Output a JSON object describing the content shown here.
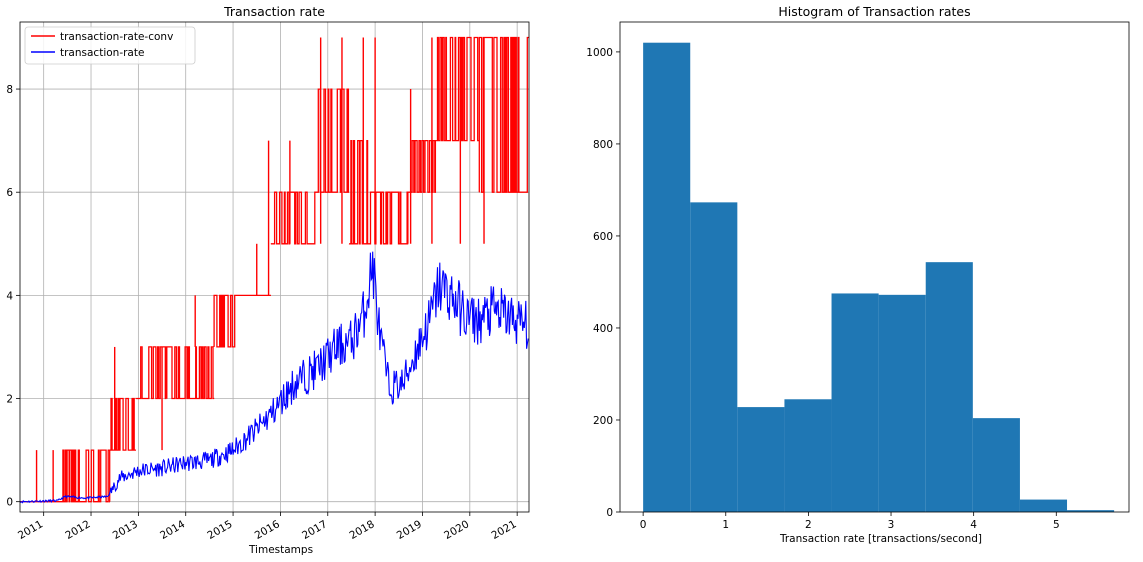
{
  "chart_data": [
    {
      "type": "line",
      "title": "Transaction rate",
      "xlabel": "Timestamps",
      "ylabel": "",
      "x_range": [
        2010.5,
        2021.25
      ],
      "ylim": [
        -0.2,
        9.3
      ],
      "grid": true,
      "legend_position": "top-left",
      "x_tick_labels": [
        "2011",
        "2012",
        "2013",
        "2014",
        "2015",
        "2016",
        "2017",
        "2018",
        "2019",
        "2020",
        "2021"
      ],
      "x_tick_values": [
        2011,
        2012,
        2013,
        2014,
        2015,
        2016,
        2017,
        2018,
        2019,
        2020,
        2021
      ],
      "y_ticks": [
        0,
        2,
        4,
        6,
        8
      ],
      "series": [
        {
          "name": "transaction-rate-conv",
          "color": "#ff0000",
          "style": "step-band",
          "bands": [
            {
              "x0": 2010.5,
              "x1": 2011.3,
              "lo": 0,
              "hi": 0
            },
            {
              "x0": 2011.3,
              "x1": 2012.4,
              "lo": 0,
              "hi": 1
            },
            {
              "x0": 2012.4,
              "x1": 2012.95,
              "lo": 1,
              "hi": 2
            },
            {
              "x0": 2012.95,
              "x1": 2013.6,
              "lo": 2,
              "hi": 3
            },
            {
              "x0": 2013.6,
              "x1": 2014.6,
              "lo": 2,
              "hi": 3
            },
            {
              "x0": 2014.6,
              "x1": 2015.05,
              "lo": 3,
              "hi": 4
            },
            {
              "x0": 2015.05,
              "x1": 2015.8,
              "lo": 4,
              "hi": 4
            },
            {
              "x0": 2015.8,
              "x1": 2016.75,
              "lo": 5,
              "hi": 6
            },
            {
              "x0": 2016.75,
              "x1": 2017.45,
              "lo": 6,
              "hi": 8
            },
            {
              "x0": 2017.45,
              "x1": 2017.85,
              "lo": 5,
              "hi": 7
            },
            {
              "x0": 2017.85,
              "x1": 2018.7,
              "lo": 5,
              "hi": 6
            },
            {
              "x0": 2018.7,
              "x1": 2019.3,
              "lo": 6,
              "hi": 7
            },
            {
              "x0": 2019.3,
              "x1": 2020.2,
              "lo": 7,
              "hi": 9
            },
            {
              "x0": 2020.2,
              "x1": 2021.25,
              "lo": 6,
              "hi": 9
            }
          ],
          "spikes": [
            [
              2010.85,
              0,
              1
            ],
            [
              2011.2,
              0,
              1
            ],
            [
              2012.5,
              1,
              3
            ],
            [
              2013.5,
              1,
              3
            ],
            [
              2014.2,
              3,
              4
            ],
            [
              2015.5,
              4,
              5
            ],
            [
              2015.75,
              4,
              7
            ],
            [
              2016.2,
              5,
              7
            ],
            [
              2016.85,
              5,
              9
            ],
            [
              2017.3,
              5,
              9
            ],
            [
              2017.75,
              5,
              9
            ],
            [
              2018.0,
              5,
              9
            ],
            [
              2018.75,
              5,
              8
            ],
            [
              2019.2,
              5,
              9
            ],
            [
              2019.8,
              5,
              9
            ],
            [
              2020.3,
              5,
              9
            ]
          ]
        },
        {
          "name": "transaction-rate",
          "color": "#0000ff",
          "style": "noisy-line",
          "points": [
            [
              2010.5,
              0.0
            ],
            [
              2011.3,
              0.02
            ],
            [
              2011.45,
              0.1
            ],
            [
              2011.9,
              0.07
            ],
            [
              2012.35,
              0.1
            ],
            [
              2012.6,
              0.45
            ],
            [
              2013.0,
              0.6
            ],
            [
              2013.5,
              0.65
            ],
            [
              2014.0,
              0.75
            ],
            [
              2014.5,
              0.8
            ],
            [
              2015.0,
              1.0
            ],
            [
              2015.5,
              1.4
            ],
            [
              2015.9,
              1.8
            ],
            [
              2016.3,
              2.3
            ],
            [
              2016.8,
              2.6
            ],
            [
              2017.2,
              3.0
            ],
            [
              2017.5,
              3.1
            ],
            [
              2017.75,
              3.6
            ],
            [
              2017.95,
              4.6
            ],
            [
              2018.1,
              3.2
            ],
            [
              2018.3,
              2.2
            ],
            [
              2018.6,
              2.3
            ],
            [
              2018.9,
              3.0
            ],
            [
              2019.15,
              3.5
            ],
            [
              2019.35,
              4.2
            ],
            [
              2019.6,
              4.0
            ],
            [
              2019.9,
              3.6
            ],
            [
              2020.2,
              3.5
            ],
            [
              2020.5,
              3.7
            ],
            [
              2020.8,
              3.6
            ],
            [
              2021.0,
              3.5
            ],
            [
              2021.25,
              3.4
            ]
          ]
        }
      ]
    },
    {
      "type": "bar",
      "title": "Histogram of Transaction rates",
      "xlabel": "Transaction rate [transactions/second]",
      "ylabel": "",
      "x_range": [
        -0.28,
        5.88
      ],
      "ylim": [
        0,
        1065
      ],
      "grid": false,
      "bin_edges": [
        0,
        0.57,
        1.14,
        1.71,
        2.28,
        2.85,
        3.42,
        3.99,
        4.56,
        5.13,
        5.7
      ],
      "values": [
        1020,
        673,
        228,
        245,
        475,
        472,
        543,
        204,
        27,
        4
      ],
      "bar_color": "#1f77b4",
      "x_ticks": [
        0,
        1,
        2,
        3,
        4,
        5
      ],
      "y_ticks": [
        0,
        200,
        400,
        600,
        800,
        1000
      ]
    }
  ]
}
